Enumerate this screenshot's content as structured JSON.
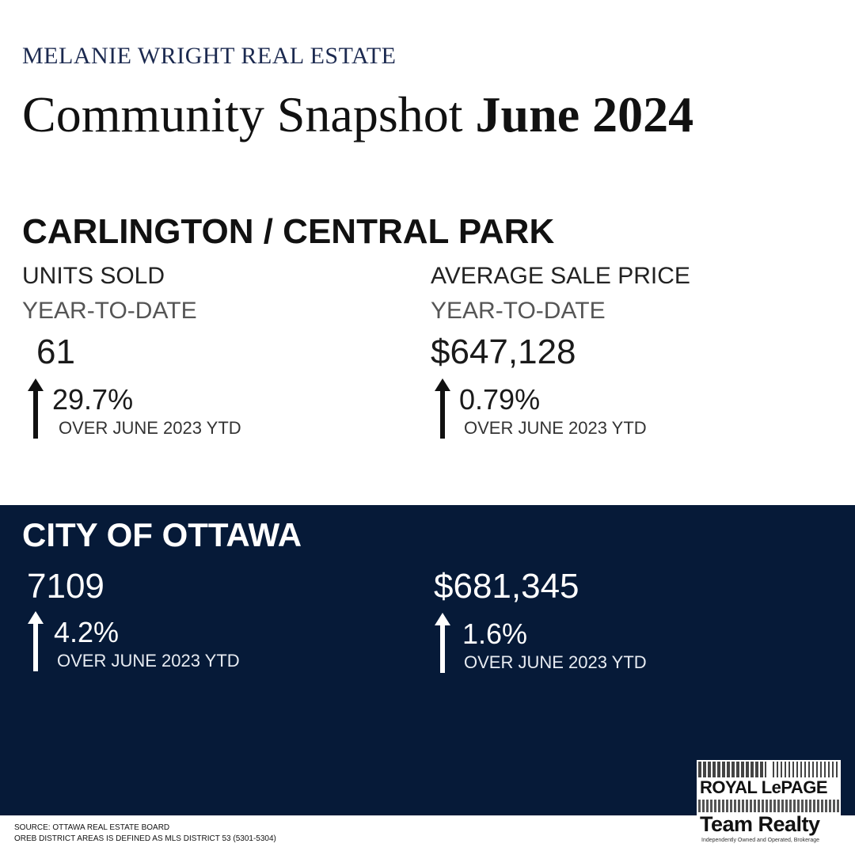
{
  "brand": "MELANIE WRIGHT REAL ESTATE",
  "title": {
    "prefix": "Community Snapshot ",
    "bold": "June 2024"
  },
  "community": {
    "name": "CARLINGTON / CENTRAL PARK",
    "units": {
      "label": "UNITS SOLD",
      "period": "YEAR-TO-DATE",
      "value": "61",
      "change": "29.7%",
      "compare": "OVER JUNE 2023 YTD"
    },
    "price": {
      "label": "AVERAGE SALE PRICE",
      "period": "YEAR-TO-DATE",
      "value": "$647,128",
      "change": "0.79%",
      "compare": "OVER JUNE 2023 YTD"
    }
  },
  "city": {
    "name": "CITY OF OTTAWA",
    "units": {
      "value": "7109",
      "change": "4.2%",
      "compare": "OVER JUNE 2023 YTD"
    },
    "price": {
      "value": "$681,345",
      "change": "1.6%",
      "compare": "OVER JUNE 2023 YTD"
    }
  },
  "footer": {
    "source": "SOURCE: OTTAWA REAL ESTATE BOARD",
    "note": "OREB DISTRICT AREAS IS DEFINED AS MLS DISTRICT 53 (5301-5304)"
  },
  "logo": {
    "line1": "ROYAL LePAGE",
    "line2": "Team Realty",
    "line3": "Independently Owned and Operated, Brokerage"
  },
  "colors": {
    "navy": "#061a38",
    "brand_text": "#1c2a50"
  },
  "icons": {
    "trend": "up-arrow-icon"
  }
}
